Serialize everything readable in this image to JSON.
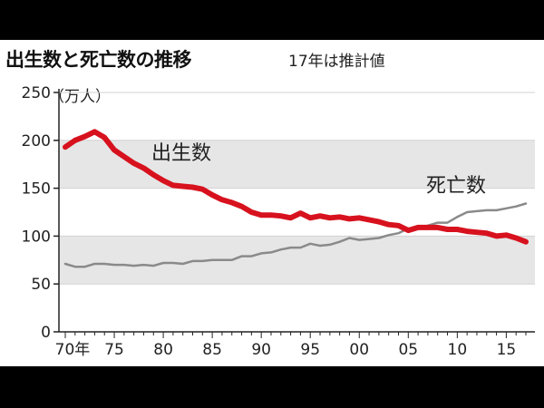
{
  "header": {
    "title": "出生数と死亡数の推移",
    "subtitle": "17年は推計値"
  },
  "chart_data": {
    "type": "line",
    "title": "出生数と死亡数の推移",
    "subtitle": "17年は推計値",
    "ylabel": "（万人）",
    "xlabel": "",
    "xlim": [
      1970,
      2017
    ],
    "ylim": [
      0,
      250
    ],
    "y_ticks": [
      0,
      50,
      100,
      150,
      200,
      250
    ],
    "y_tick_labels": [
      "0",
      "50",
      "100",
      "150",
      "200",
      "250"
    ],
    "x_ticks": [
      1970,
      1975,
      1980,
      1985,
      1990,
      1995,
      2000,
      2005,
      2010,
      2015
    ],
    "x_tick_labels": [
      "70年",
      "75",
      "80",
      "85",
      "90",
      "95",
      "00",
      "05",
      "10",
      "15"
    ],
    "shaded_bands": [
      [
        50,
        100
      ],
      [
        150,
        200
      ]
    ],
    "series": [
      {
        "name": "出生数",
        "color": "#d7121e",
        "x": [
          1970,
          1971,
          1972,
          1973,
          1974,
          1975,
          1976,
          1977,
          1978,
          1979,
          1980,
          1981,
          1982,
          1983,
          1984,
          1985,
          1986,
          1987,
          1988,
          1989,
          1990,
          1991,
          1992,
          1993,
          1994,
          1995,
          1996,
          1997,
          1998,
          1999,
          2000,
          2001,
          2002,
          2003,
          2004,
          2005,
          2006,
          2007,
          2008,
          2009,
          2010,
          2011,
          2012,
          2013,
          2014,
          2015,
          2016,
          2017
        ],
        "values": [
          193,
          200,
          204,
          209,
          203,
          190,
          183,
          176,
          171,
          164,
          158,
          153,
          152,
          151,
          149,
          143,
          138,
          135,
          131,
          125,
          122,
          122,
          121,
          119,
          124,
          119,
          121,
          119,
          120,
          118,
          119,
          117,
          115,
          112,
          111,
          106,
          109,
          109,
          109,
          107,
          107,
          105,
          104,
          103,
          100,
          101,
          98,
          94
        ]
      },
      {
        "name": "死亡数",
        "color": "#8a8a8a",
        "x": [
          1970,
          1971,
          1972,
          1973,
          1974,
          1975,
          1976,
          1977,
          1978,
          1979,
          1980,
          1981,
          1982,
          1983,
          1984,
          1985,
          1986,
          1987,
          1988,
          1989,
          1990,
          1991,
          1992,
          1993,
          1994,
          1995,
          1996,
          1997,
          1998,
          1999,
          2000,
          2001,
          2002,
          2003,
          2004,
          2005,
          2006,
          2007,
          2008,
          2009,
          2010,
          2011,
          2012,
          2013,
          2014,
          2015,
          2016,
          2017
        ],
        "values": [
          71,
          68,
          68,
          71,
          71,
          70,
          70,
          69,
          70,
          69,
          72,
          72,
          71,
          74,
          74,
          75,
          75,
          75,
          79,
          79,
          82,
          83,
          86,
          88,
          88,
          92,
          90,
          91,
          94,
          98,
          96,
          97,
          98,
          101,
          103,
          108,
          108,
          111,
          114,
          114,
          120,
          125,
          126,
          127,
          127,
          129,
          131,
          134
        ]
      }
    ]
  }
}
